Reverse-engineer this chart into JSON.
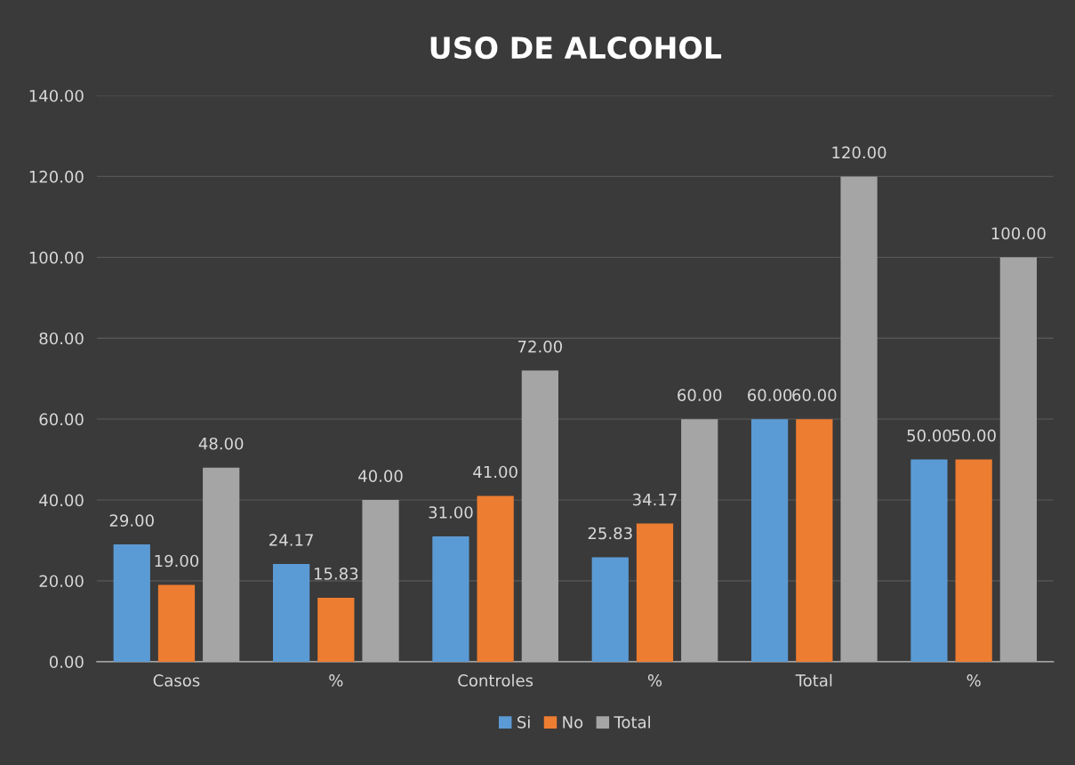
{
  "chart_data": {
    "type": "bar",
    "title": "USO DE ALCOHOL",
    "categories": [
      "Casos",
      "%",
      "Controles",
      "%",
      "Total",
      "%"
    ],
    "series": [
      {
        "name": "Si",
        "color": "#5b9bd5",
        "values": [
          29,
          24.17,
          31,
          25.83,
          60,
          50
        ],
        "value_labels": [
          "29.00",
          "24.17",
          "31.00",
          "25.83",
          "60.00",
          "50.00"
        ]
      },
      {
        "name": "No",
        "color": "#ed7d31",
        "values": [
          19,
          15.83,
          41,
          34.17,
          60,
          50
        ],
        "value_labels": [
          "19.00",
          "15.83",
          "41.00",
          "34.17",
          "60.00",
          "50.00"
        ]
      },
      {
        "name": "Total",
        "color": "#a5a5a5",
        "values": [
          48,
          40,
          72,
          60,
          120,
          100
        ],
        "value_labels": [
          "48.00",
          "40.00",
          "72.00",
          "60.00",
          "120.00",
          "100.00"
        ]
      }
    ],
    "ylim": [
      0,
      140
    ],
    "yticks": [
      {
        "value": 0,
        "label": "0.00"
      },
      {
        "value": 20,
        "label": "20.00"
      },
      {
        "value": 40,
        "label": "40.00"
      },
      {
        "value": 60,
        "label": "60.00"
      },
      {
        "value": 80,
        "label": "80.00"
      },
      {
        "value": 100,
        "label": "100.00"
      },
      {
        "value": 120,
        "label": "120.00"
      },
      {
        "value": 140,
        "label": "140.00"
      }
    ],
    "grid": "y",
    "legend": "bottom"
  }
}
